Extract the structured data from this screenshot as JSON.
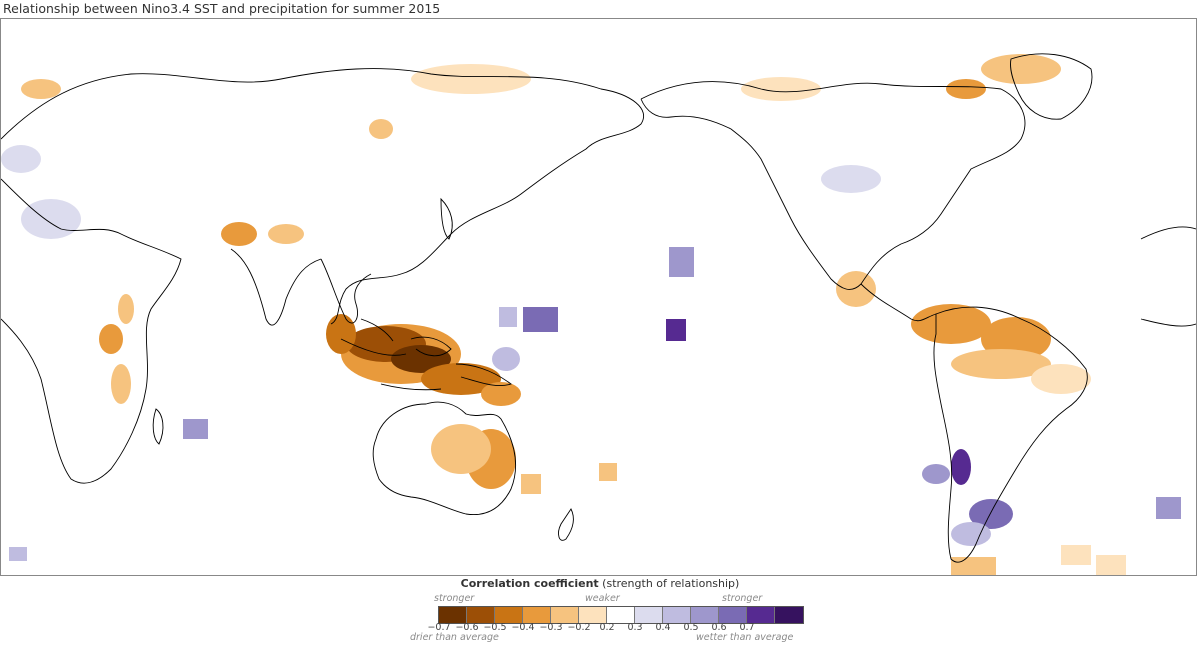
{
  "title": "Relationship between Nino3.4 SST and precipitation for summer 2015",
  "legend": {
    "title_bold": "Correlation coefficient",
    "title_rest": " (strength of relationship)",
    "stronger_left": "stronger",
    "weaker": "weaker",
    "stronger_right": "stronger",
    "drier": "drier than average",
    "wetter": "wetter than average",
    "colors": [
      "#6b3200",
      "#9c4f06",
      "#c97414",
      "#e89a3c",
      "#f6c37f",
      "#fde2bd",
      "#ffffff",
      "#dcdcee",
      "#bfbce0",
      "#9e97cc",
      "#7a6bb4",
      "#562a91",
      "#36125f"
    ],
    "ticks": [
      "−0.7",
      "−0.6",
      "−0.5",
      "−0.4",
      "−0.3",
      "−0.2",
      "0.2",
      "0.3",
      "0.4",
      "0.5",
      "0.6",
      "0.7"
    ]
  },
  "map": {
    "projection": "equirectangular, Pacific-centered",
    "land_outline": "#000000",
    "dry_colors": [
      "#fde2bd",
      "#f6c37f",
      "#e89a3c",
      "#c97414",
      "#9c4f06",
      "#6b3200"
    ],
    "wet_colors": [
      "#dcdcee",
      "#bfbce0",
      "#9e97cc",
      "#7a6bb4",
      "#562a91"
    ]
  }
}
